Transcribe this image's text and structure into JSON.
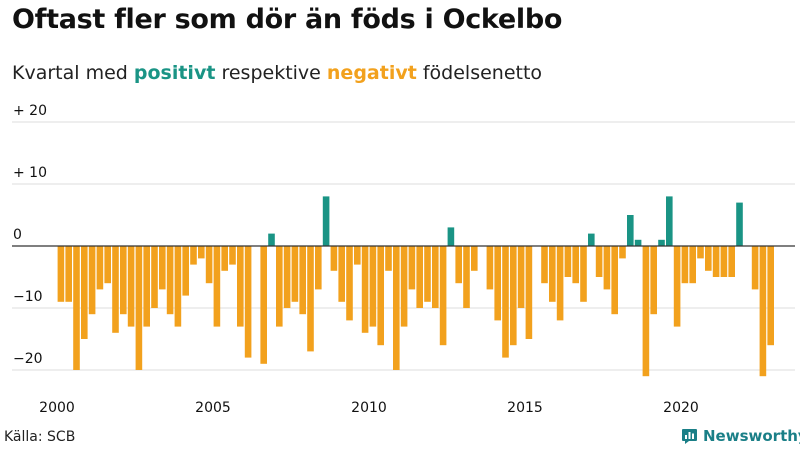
{
  "title": "Oftast fler som dör än föds i Ockelbo",
  "subtitle": {
    "prefix": "Kvartal med ",
    "positive": "positivt",
    "middle": " respektive ",
    "negative": "negativt",
    "suffix": " födelsenetto"
  },
  "source": "Källa: SCB",
  "brand": {
    "name": "Newsworthy",
    "icon": "newsworthy-logo-icon"
  },
  "colors": {
    "positive": "#1a9485",
    "negative": "#f2a11d",
    "grid": "#dddddd",
    "zero": "#333333",
    "text": "#111111"
  },
  "chart_data": {
    "type": "bar",
    "title": "Oftast fler som dör än föds i Ockelbo",
    "xlabel": "",
    "ylabel": "",
    "ylim": [
      -22,
      22
    ],
    "start_year": 2000,
    "quarters_per_year": 4,
    "y_ticks": [
      {
        "value": 20,
        "label": "+ 20"
      },
      {
        "value": 10,
        "label": "+ 10"
      },
      {
        "value": 0,
        "label": "0"
      },
      {
        "value": -10,
        "label": "−10"
      },
      {
        "value": -20,
        "label": "−20"
      }
    ],
    "x_ticks": [
      {
        "year": 2000,
        "label": "2000"
      },
      {
        "year": 2005,
        "label": "2005"
      },
      {
        "year": 2010,
        "label": "2010"
      },
      {
        "year": 2015,
        "label": "2015"
      },
      {
        "year": 2020,
        "label": "2020"
      }
    ],
    "values": [
      -9,
      -9,
      -20,
      -15,
      -11,
      -7,
      -6,
      -14,
      -11,
      -13,
      -20,
      -13,
      -10,
      -7,
      -11,
      -13,
      -8,
      -3,
      -2,
      -6,
      -13,
      -4,
      -3,
      -13,
      -18,
      0,
      -19,
      2,
      -13,
      -10,
      -9,
      -11,
      -17,
      -7,
      8,
      -4,
      -9,
      -12,
      -3,
      -14,
      -13,
      -16,
      -4,
      -20,
      -13,
      -7,
      -10,
      -9,
      -10,
      -16,
      3,
      -6,
      -10,
      -4,
      0,
      -7,
      -12,
      -18,
      -16,
      -10,
      -15,
      0,
      -6,
      -9,
      -12,
      -5,
      -6,
      -9,
      2,
      -5,
      -7,
      -11,
      -2,
      5,
      1,
      -21,
      -11,
      1,
      8,
      -13,
      -6,
      -6,
      -2,
      -4,
      -5,
      -5,
      -5,
      7,
      0,
      -7,
      -21,
      -16
    ]
  }
}
